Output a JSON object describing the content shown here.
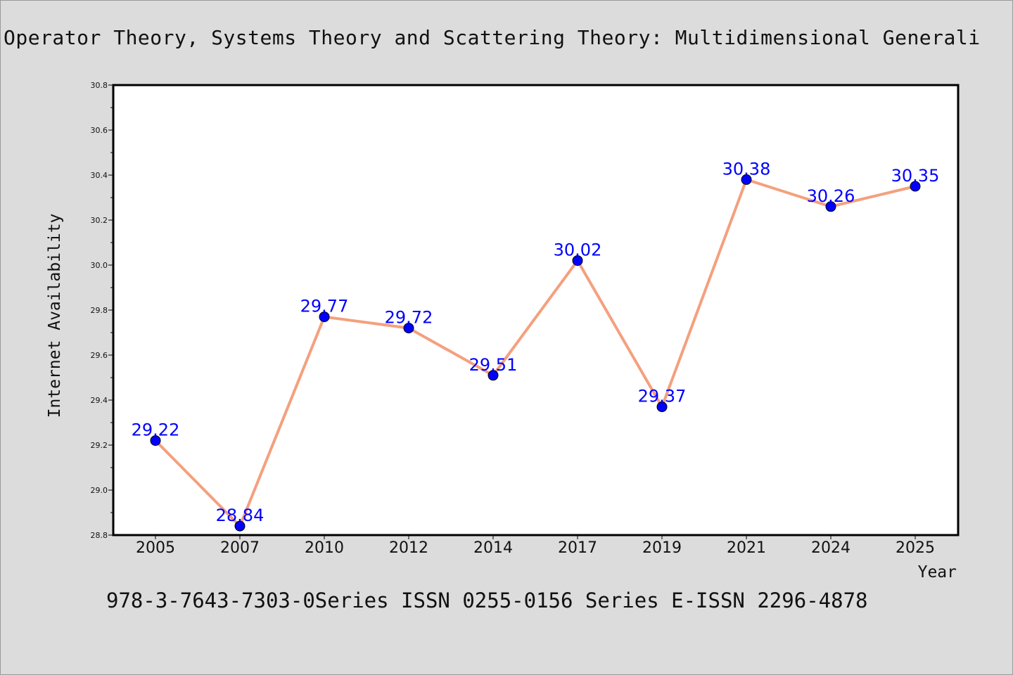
{
  "header": {
    "title": "Operator Theory, Systems Theory and Scattering Theory: Multidimensional Generali",
    "subtitle": "978-3-7643-7303-0Series ISSN 0255-0156 Series E-ISSN 2296-4878"
  },
  "colors": {
    "background": "#dcdcdc",
    "plot_background": "#ffffff",
    "line": "#f4a07e",
    "marker": "#0000ff",
    "data_label": "#0000ff"
  },
  "chart_data": {
    "type": "line",
    "title": "Operator Theory, Systems Theory and Scattering Theory: Multidimensional Generali",
    "subtitle": "978-3-7643-7303-0Series ISSN 0255-0156 Series E-ISSN 2296-4878",
    "xlabel": "Year",
    "ylabel": "Internet Availability",
    "categories": [
      "2005",
      "2007",
      "2010",
      "2012",
      "2014",
      "2017",
      "2019",
      "2021",
      "2024",
      "2025"
    ],
    "values": [
      29.22,
      28.84,
      29.77,
      29.72,
      29.51,
      30.02,
      29.37,
      30.38,
      30.26,
      30.35
    ],
    "data_labels": [
      "29.22",
      "28.84",
      "29.77",
      "29.72",
      "29.51",
      "30.02",
      "29.37",
      "30.38",
      "30.26",
      "30.35"
    ],
    "ylim": [
      28.8,
      30.8
    ],
    "yticks": [
      "28.8",
      "29.0",
      "29.2",
      "29.4",
      "29.6",
      "29.8",
      "30.0",
      "30.2",
      "30.4",
      "30.6",
      "30.8"
    ],
    "grid": false,
    "legend": "none"
  }
}
